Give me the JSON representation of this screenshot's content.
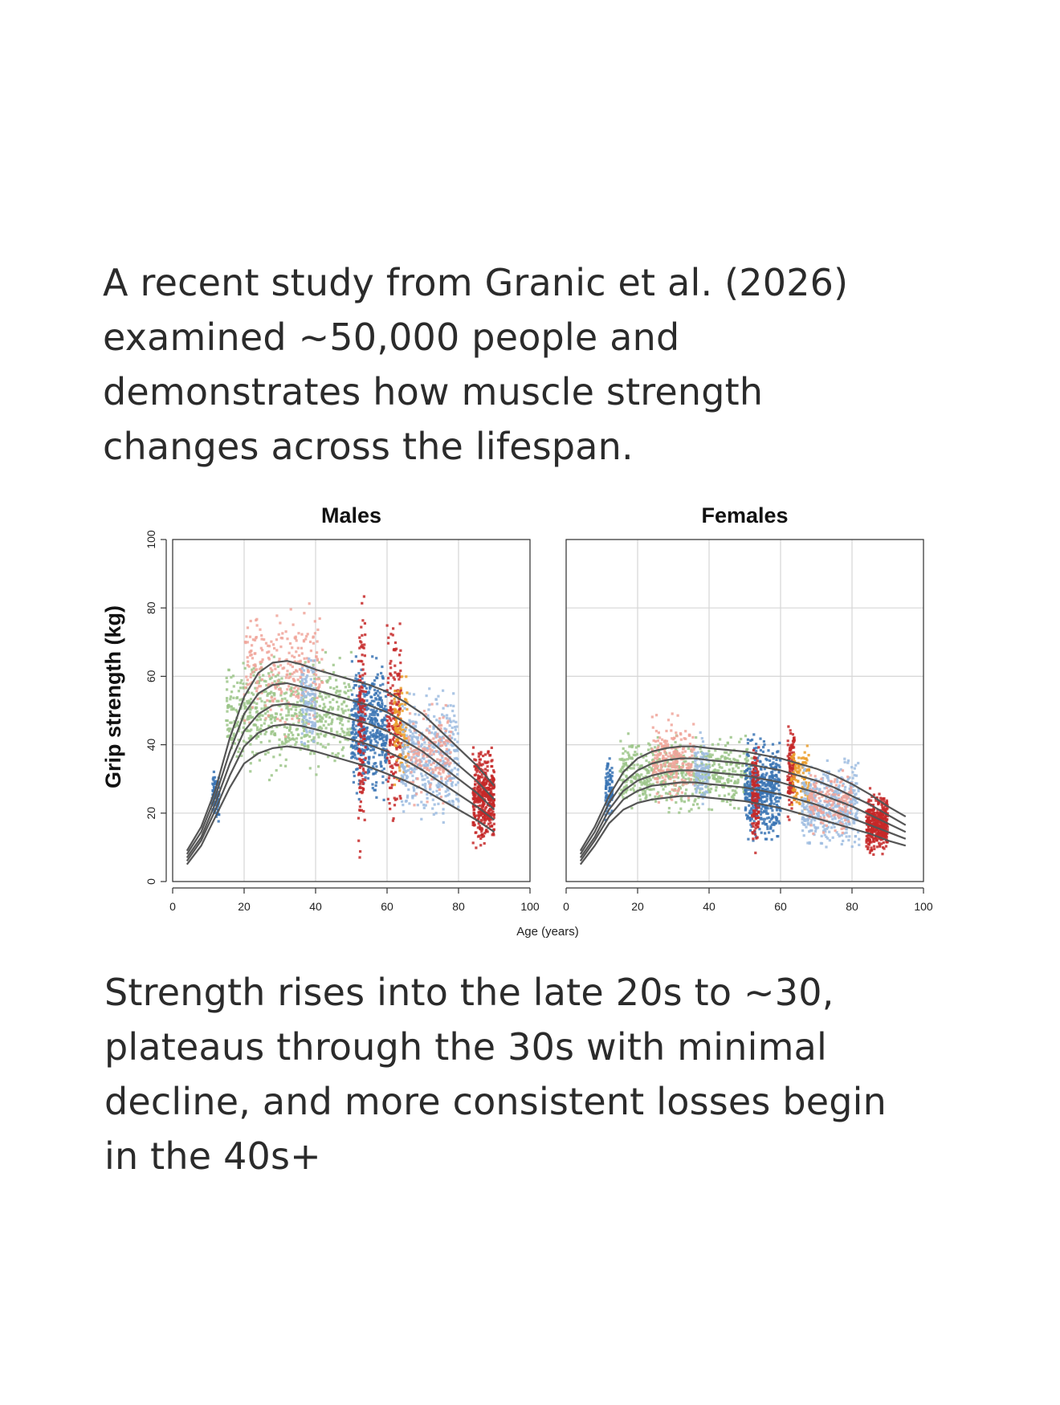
{
  "intro": {
    "lines": [
      "A recent study from Granic et al. (2026)",
      "examined ~50,000 people and",
      "demonstrates how muscle strength",
      "changes across the lifespan."
    ]
  },
  "outro": {
    "lines": [
      "Strength rises into the late 20s to ~30,",
      "plateaus through the 30s with minimal",
      "decline, and more consistent losses begin",
      "in the 40s+"
    ]
  },
  "chart_data": {
    "type": "scatter",
    "ylabel": "Grip strength (kg)",
    "xlabel": "Age (years)",
    "xlim": [
      0,
      100
    ],
    "ylim": [
      0,
      100
    ],
    "x_ticks": [
      0,
      20,
      40,
      60,
      80,
      100
    ],
    "y_ticks": [
      0,
      20,
      40,
      60,
      80,
      100
    ],
    "grid": true,
    "colors": {
      "blue": "#3a74b4",
      "red": "#c62828",
      "green": "#9cc68a",
      "pink": "#f0a49a",
      "lightblue": "#9dbce0",
      "orange": "#eb9d2a",
      "curve": "#555555"
    },
    "panels": [
      {
        "title": "Males",
        "centile_x": [
          4,
          8,
          12,
          16,
          20,
          24,
          28,
          32,
          36,
          40,
          45,
          50,
          55,
          60,
          65,
          70,
          75,
          80,
          85,
          90
        ],
        "centiles": [
          {
            "name": "upper",
            "values": [
              9,
              16,
              27,
              42,
              54,
              61,
              64,
              64.5,
              63.5,
              62,
              60.5,
              59,
              57.5,
              55.5,
              52.5,
              49,
              44,
              39,
              34,
              28
            ]
          },
          {
            "name": "upper-mid",
            "values": [
              8,
              14.5,
              25,
              38,
              49,
              55,
              57.5,
              58,
              57,
              56,
              54.5,
              53,
              51.5,
              49.5,
              46.5,
              43,
              38.5,
              34,
              29.5,
              24
            ]
          },
          {
            "name": "median",
            "values": [
              7,
              13,
              23,
              34.5,
              44,
              49,
              51.5,
              52,
              51.5,
              50.5,
              49,
              47.5,
              46,
              44,
              41,
              38,
              34,
              30,
              26,
              21
            ]
          },
          {
            "name": "lower-mid",
            "values": [
              6,
              12,
              21,
              31,
              39.5,
              43.5,
              45.5,
              46,
              45.5,
              44.5,
              43,
              41.5,
              40,
              38,
              35.5,
              32.5,
              29,
              25.5,
              22,
              18
            ]
          },
          {
            "name": "lower",
            "values": [
              5,
              10.5,
              19,
              27.5,
              34.5,
              37.5,
              39,
              39.5,
              39,
              38,
              36.5,
              35,
              33.5,
              31.5,
              29.5,
              27,
              24,
              21,
              18,
              14.5
            ]
          }
        ],
        "clusters": [
          {
            "color": "blue",
            "x": [
              11,
              13
            ],
            "y": [
              15,
              35
            ],
            "n": 90
          },
          {
            "color": "green",
            "x": [
              15,
              50
            ],
            "y": [
              28,
              70
            ],
            "n": 600
          },
          {
            "color": "pink",
            "x": [
              20,
              42
            ],
            "y": [
              40,
              85
            ],
            "n": 260
          },
          {
            "color": "lightblue",
            "x": [
              36,
              40
            ],
            "y": [
              35,
              70
            ],
            "n": 120
          },
          {
            "color": "blue",
            "x": [
              50,
              60
            ],
            "y": [
              20,
              70
            ],
            "n": 460
          },
          {
            "color": "red",
            "x": [
              52,
              54
            ],
            "y": [
              2,
              88
            ],
            "n": 140
          },
          {
            "color": "red",
            "x": [
              60,
              64
            ],
            "y": [
              10,
              85
            ],
            "n": 170
          },
          {
            "color": "orange",
            "x": [
              62,
              66
            ],
            "y": [
              25,
              62
            ],
            "n": 110
          },
          {
            "color": "lightblue",
            "x": [
              64,
              80
            ],
            "y": [
              12,
              60
            ],
            "n": 420
          },
          {
            "color": "pink",
            "x": [
              66,
              78
            ],
            "y": [
              20,
              55
            ],
            "n": 160
          },
          {
            "color": "red",
            "x": [
              84,
              90
            ],
            "y": [
              8,
              42
            ],
            "n": 420
          }
        ]
      },
      {
        "title": "Females",
        "centile_x": [
          4,
          8,
          12,
          16,
          20,
          24,
          28,
          32,
          36,
          40,
          45,
          50,
          55,
          60,
          65,
          70,
          75,
          80,
          85,
          90,
          95
        ],
        "centiles": [
          {
            "name": "upper",
            "values": [
              9,
              16,
              25,
              32,
              36,
              38,
              39,
              39.5,
              39.5,
              39,
              38.5,
              38,
              37,
              36,
              34.5,
              33,
              31,
              28.5,
              25.5,
              22,
              19
            ]
          },
          {
            "name": "upper-mid",
            "values": [
              8,
              14.5,
              23,
              29,
              32.5,
              34.5,
              35.5,
              36,
              36,
              35.5,
              35,
              34.5,
              33.5,
              32.5,
              31,
              29.5,
              27.5,
              25,
              22.5,
              19.5,
              16.5
            ]
          },
          {
            "name": "median",
            "values": [
              7,
              13,
              21,
              26.5,
              29.5,
              31,
              32,
              32.5,
              32.5,
              32,
              31.5,
              31,
              30,
              29,
              27.5,
              26,
              24,
              22,
              19.5,
              17,
              14.5
            ]
          },
          {
            "name": "lower-mid",
            "values": [
              6,
              12,
              19,
              24,
              26.5,
              28,
              28.5,
              29,
              29,
              28.5,
              28,
              27.5,
              26.5,
              25.5,
              24,
              22.5,
              20.5,
              18.5,
              16.5,
              14.5,
              12.5
            ]
          },
          {
            "name": "lower",
            "values": [
              5,
              10.5,
              17,
              21,
              23,
              24,
              24.5,
              25,
              25,
              24.5,
              24,
              23.5,
              22.5,
              21.5,
              20,
              18.5,
              17,
              15.5,
              14,
              12,
              10.5
            ]
          }
        ],
        "clusters": [
          {
            "color": "blue",
            "x": [
              11,
              13
            ],
            "y": [
              15,
              38
            ],
            "n": 90
          },
          {
            "color": "green",
            "x": [
              15,
              52
            ],
            "y": [
              18,
              45
            ],
            "n": 600
          },
          {
            "color": "pink",
            "x": [
              24,
              36
            ],
            "y": [
              20,
              52
            ],
            "n": 240
          },
          {
            "color": "lightblue",
            "x": [
              36,
              40
            ],
            "y": [
              20,
              45
            ],
            "n": 100
          },
          {
            "color": "blue",
            "x": [
              50,
              60
            ],
            "y": [
              8,
              45
            ],
            "n": 460
          },
          {
            "color": "red",
            "x": [
              52,
              54
            ],
            "y": [
              6,
              45
            ],
            "n": 120
          },
          {
            "color": "red",
            "x": [
              62,
              64
            ],
            "y": [
              15,
              50
            ],
            "n": 120
          },
          {
            "color": "orange",
            "x": [
              63,
              68
            ],
            "y": [
              18,
              42
            ],
            "n": 110
          },
          {
            "color": "lightblue",
            "x": [
              66,
              82
            ],
            "y": [
              6,
              38
            ],
            "n": 420
          },
          {
            "color": "pink",
            "x": [
              68,
              80
            ],
            "y": [
              12,
              35
            ],
            "n": 160
          },
          {
            "color": "red",
            "x": [
              84,
              90
            ],
            "y": [
              6,
              28
            ],
            "n": 420
          }
        ]
      }
    ]
  }
}
